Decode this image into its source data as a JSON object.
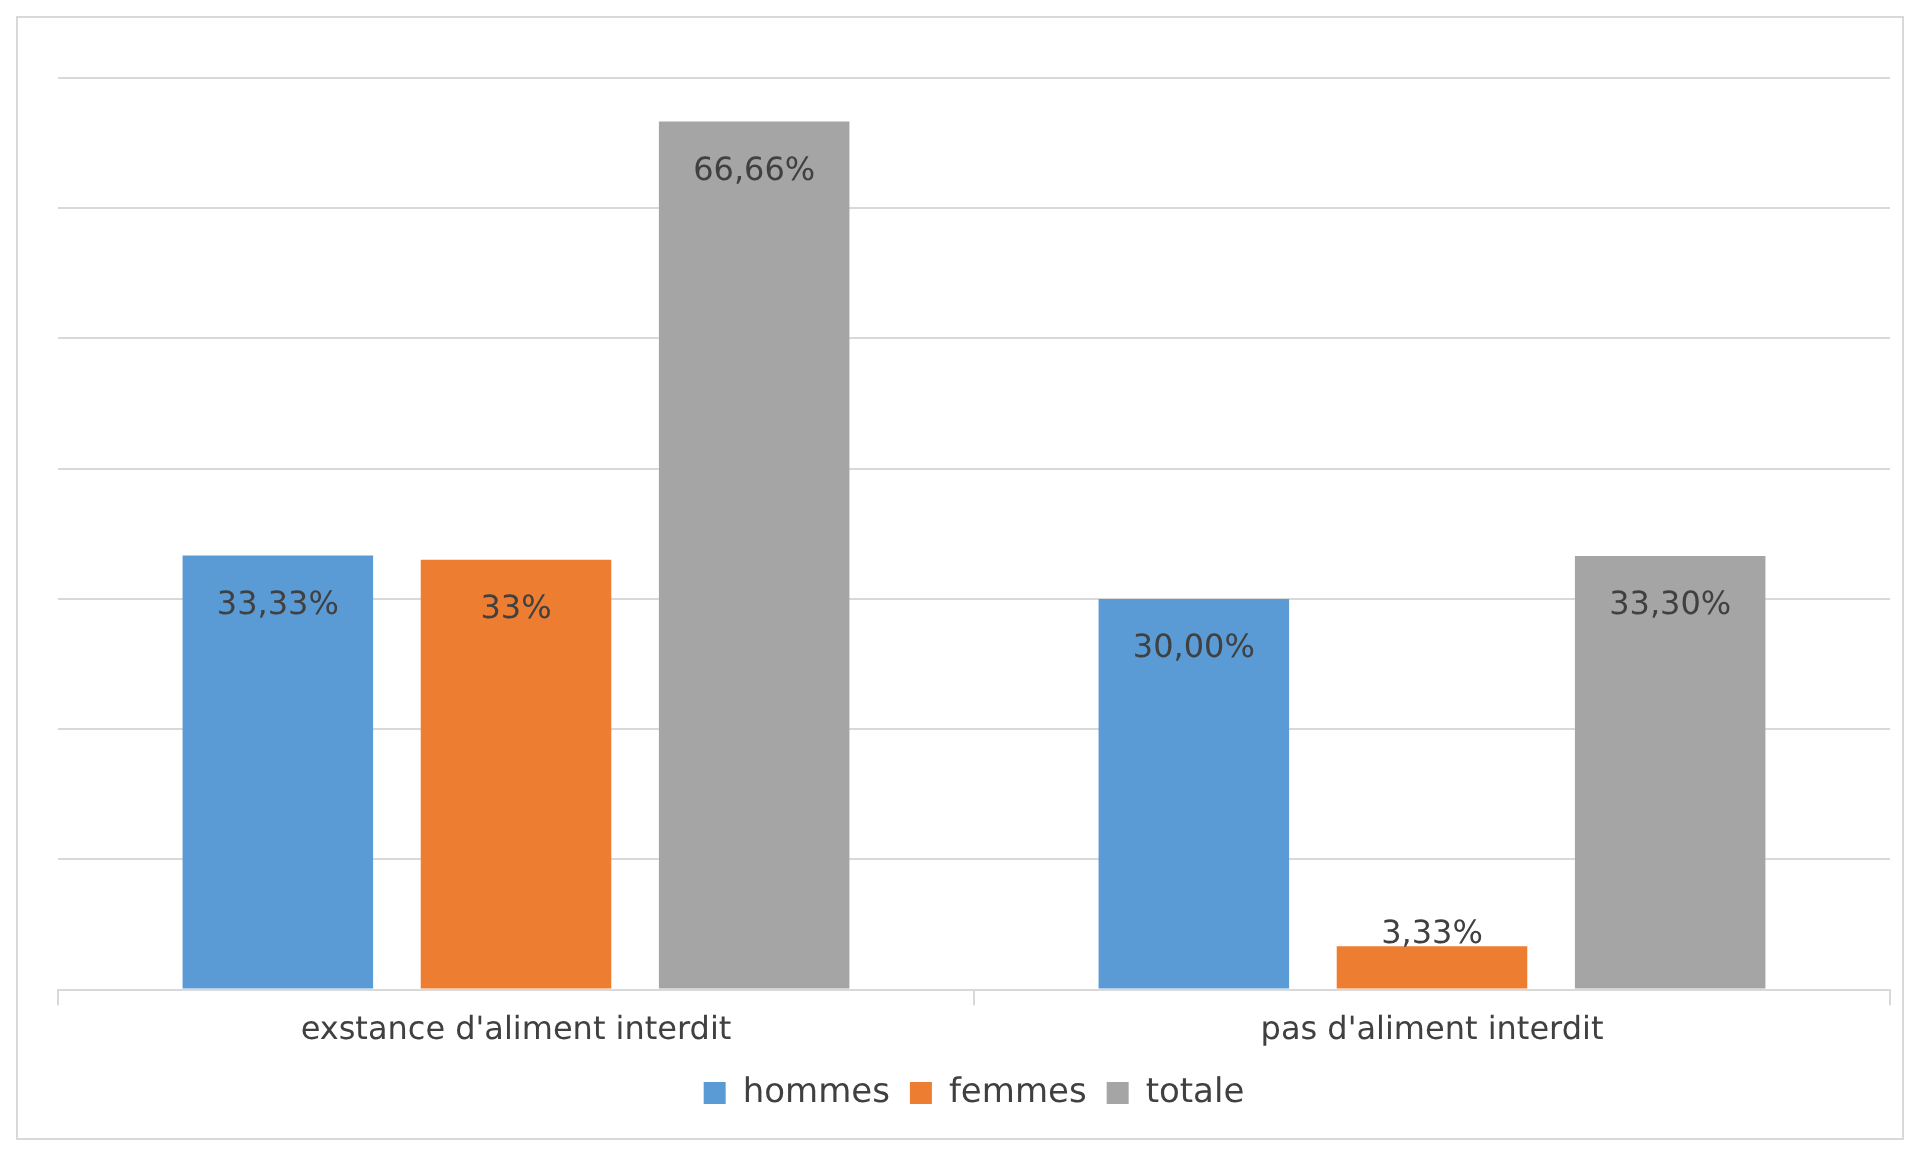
{
  "chart_data": {
    "type": "bar",
    "categories": [
      "exstance d'aliment interdit",
      "pas d'aliment interdit"
    ],
    "series": [
      {
        "name": "hommes",
        "color": "#5b9bd5",
        "values": [
          33.33,
          30.0
        ],
        "value_labels": [
          "33,33%",
          "30,00%"
        ]
      },
      {
        "name": "femmes",
        "color": "#ed7d31",
        "values": [
          33,
          3.33
        ],
        "value_labels": [
          "33%",
          "3,33%"
        ]
      },
      {
        "name": "totale",
        "color": "#a5a5a5",
        "values": [
          66.66,
          33.3
        ],
        "value_labels": [
          "66,66%",
          "33,30%"
        ]
      }
    ],
    "ylim": [
      0,
      70
    ],
    "yticks": [
      {
        "value": 0,
        "label": null
      },
      {
        "value": 10,
        "label": null
      },
      {
        "value": 20,
        "label": null
      },
      {
        "value": 30,
        "label": null
      },
      {
        "value": 40,
        "label": null
      },
      {
        "value": 50,
        "label": null
      },
      {
        "value": 60,
        "label": null
      },
      {
        "value": 70,
        "label": null
      }
    ],
    "tick_labels": "x",
    "grid": "y",
    "legend": "bottom"
  }
}
